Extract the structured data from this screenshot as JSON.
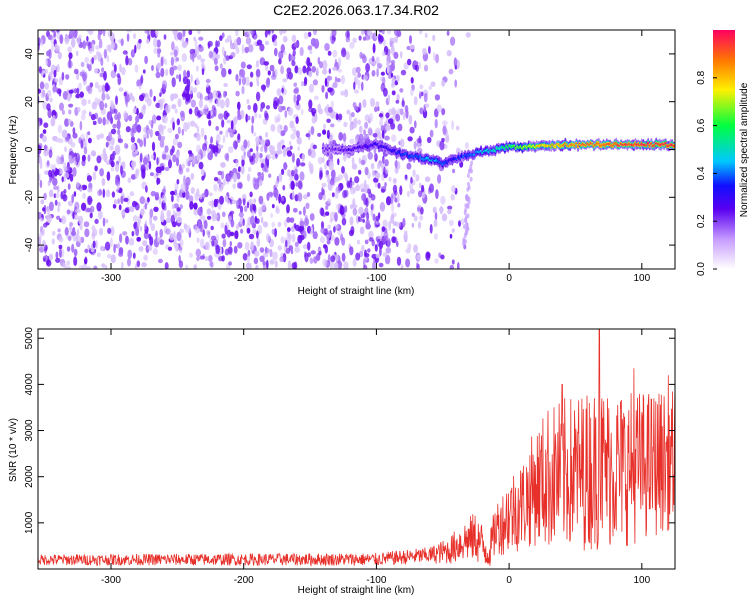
{
  "title": "C2E2.2026.063.17.34.R02",
  "chart_data": [
    {
      "type": "heatmap",
      "xlabel": "Height of straight line (km)",
      "ylabel": "Frequency (Hz)",
      "xlim": [
        -355,
        125
      ],
      "ylim": [
        -50,
        50
      ],
      "x_ticks": [
        -300,
        -200,
        -100,
        0,
        100
      ],
      "x_tick_labels": [
        "-300",
        "-200",
        "-100",
        "0",
        "100"
      ],
      "y_ticks": [
        -40,
        -20,
        0,
        20,
        40
      ],
      "y_tick_labels": [
        "-40",
        "-20",
        "0",
        "20",
        "40"
      ],
      "colorbar": {
        "label": "Normalized spectral amplitude",
        "range": [
          0,
          1
        ],
        "ticks": [
          0.0,
          0.2,
          0.4,
          0.6,
          0.8
        ],
        "tick_labels": [
          "0.0",
          "0.2",
          "0.4",
          "0.6",
          "0.8"
        ]
      },
      "noise_region_x": [
        -355,
        -30
      ],
      "ridge": {
        "x": [
          -140,
          -120,
          -100,
          -90,
          -80,
          -70,
          -60,
          -50,
          -45,
          -40,
          -30,
          -20,
          -10,
          0,
          20,
          40,
          60,
          80,
          100,
          125
        ],
        "frequency": [
          0,
          0,
          2,
          0,
          -2,
          -3,
          -4,
          -6,
          -5,
          -4,
          -2,
          -1,
          0,
          1,
          1,
          2,
          2,
          2,
          2,
          2
        ],
        "amplitude": [
          0.2,
          0.25,
          0.3,
          0.3,
          0.35,
          0.4,
          0.45,
          0.4,
          0.3,
          0.35,
          0.4,
          0.45,
          0.5,
          0.6,
          0.75,
          0.85,
          0.9,
          0.92,
          0.95,
          0.95
        ]
      }
    },
    {
      "type": "line",
      "xlabel": "Height of straight line (km)",
      "ylabel": "SNR (10 * v/v)",
      "xlim": [
        -355,
        125
      ],
      "ylim": [
        0,
        5200
      ],
      "x_ticks": [
        -300,
        -200,
        -100,
        0,
        100
      ],
      "x_tick_labels": [
        "-300",
        "-200",
        "-100",
        "0",
        "100"
      ],
      "y_ticks": [
        1000,
        2000,
        3000,
        4000,
        5000
      ],
      "y_tick_labels": [
        "1000",
        "2000",
        "3000",
        "4000",
        "5000"
      ],
      "color": "#e8302a",
      "envelope": {
        "x": [
          -355,
          -100,
          -60,
          -45,
          -35,
          -25,
          -20,
          -15,
          -10,
          -5,
          0,
          10,
          20,
          30,
          50,
          70,
          90,
          110,
          125
        ],
        "base": [
          200,
          210,
          300,
          400,
          600,
          700,
          500,
          350,
          900,
          1000,
          1200,
          1400,
          1800,
          2000,
          2100,
          2200,
          2200,
          2300,
          2400
        ],
        "amp": [
          120,
          140,
          180,
          300,
          450,
          550,
          500,
          350,
          600,
          700,
          900,
          1000,
          1300,
          1600,
          1700,
          1800,
          1700,
          1600,
          1500
        ]
      },
      "annotated_peaks": [
        {
          "x": 68,
          "y": 5200
        },
        {
          "x": 94,
          "y": 4350
        },
        {
          "x": 120,
          "y": 4200
        },
        {
          "x": 40,
          "y": 4000
        }
      ]
    }
  ]
}
